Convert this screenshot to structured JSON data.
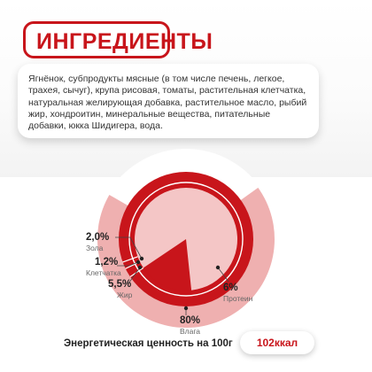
{
  "title": "ИНГРЕДИЕНТЫ",
  "ingredients_text": "Ягнёнок, субпродукты мясные (в том числе печень, легкое, трахея, сычуг), крупа рисовая, томаты, растительная клетчатка, натуральная желирующая добавка, растительное масло, рыбий жир, хондроитин, минеральные вещества, питательные добавки, юкка Шидигера, вода.",
  "colors": {
    "brand_red": "#c8151b",
    "pink_light": "#efb0b0",
    "pink_inner": "#f4c6c6"
  },
  "chart_data": {
    "type": "pie",
    "series": [
      {
        "name": "Влага",
        "value": 80,
        "value_label": "80%"
      },
      {
        "name": "Протеин",
        "value": 6,
        "value_label": "6%"
      },
      {
        "name": "Жир",
        "value": 5.5,
        "value_label": "5,5%"
      },
      {
        "name": "Клетчатка",
        "value": 1.2,
        "value_label": "1,2%"
      },
      {
        "name": "Зола",
        "value": 2.0,
        "value_label": "2,0%"
      }
    ]
  },
  "energy": {
    "label": "Энергетическая ценность на 100г",
    "value": "102ккал"
  }
}
